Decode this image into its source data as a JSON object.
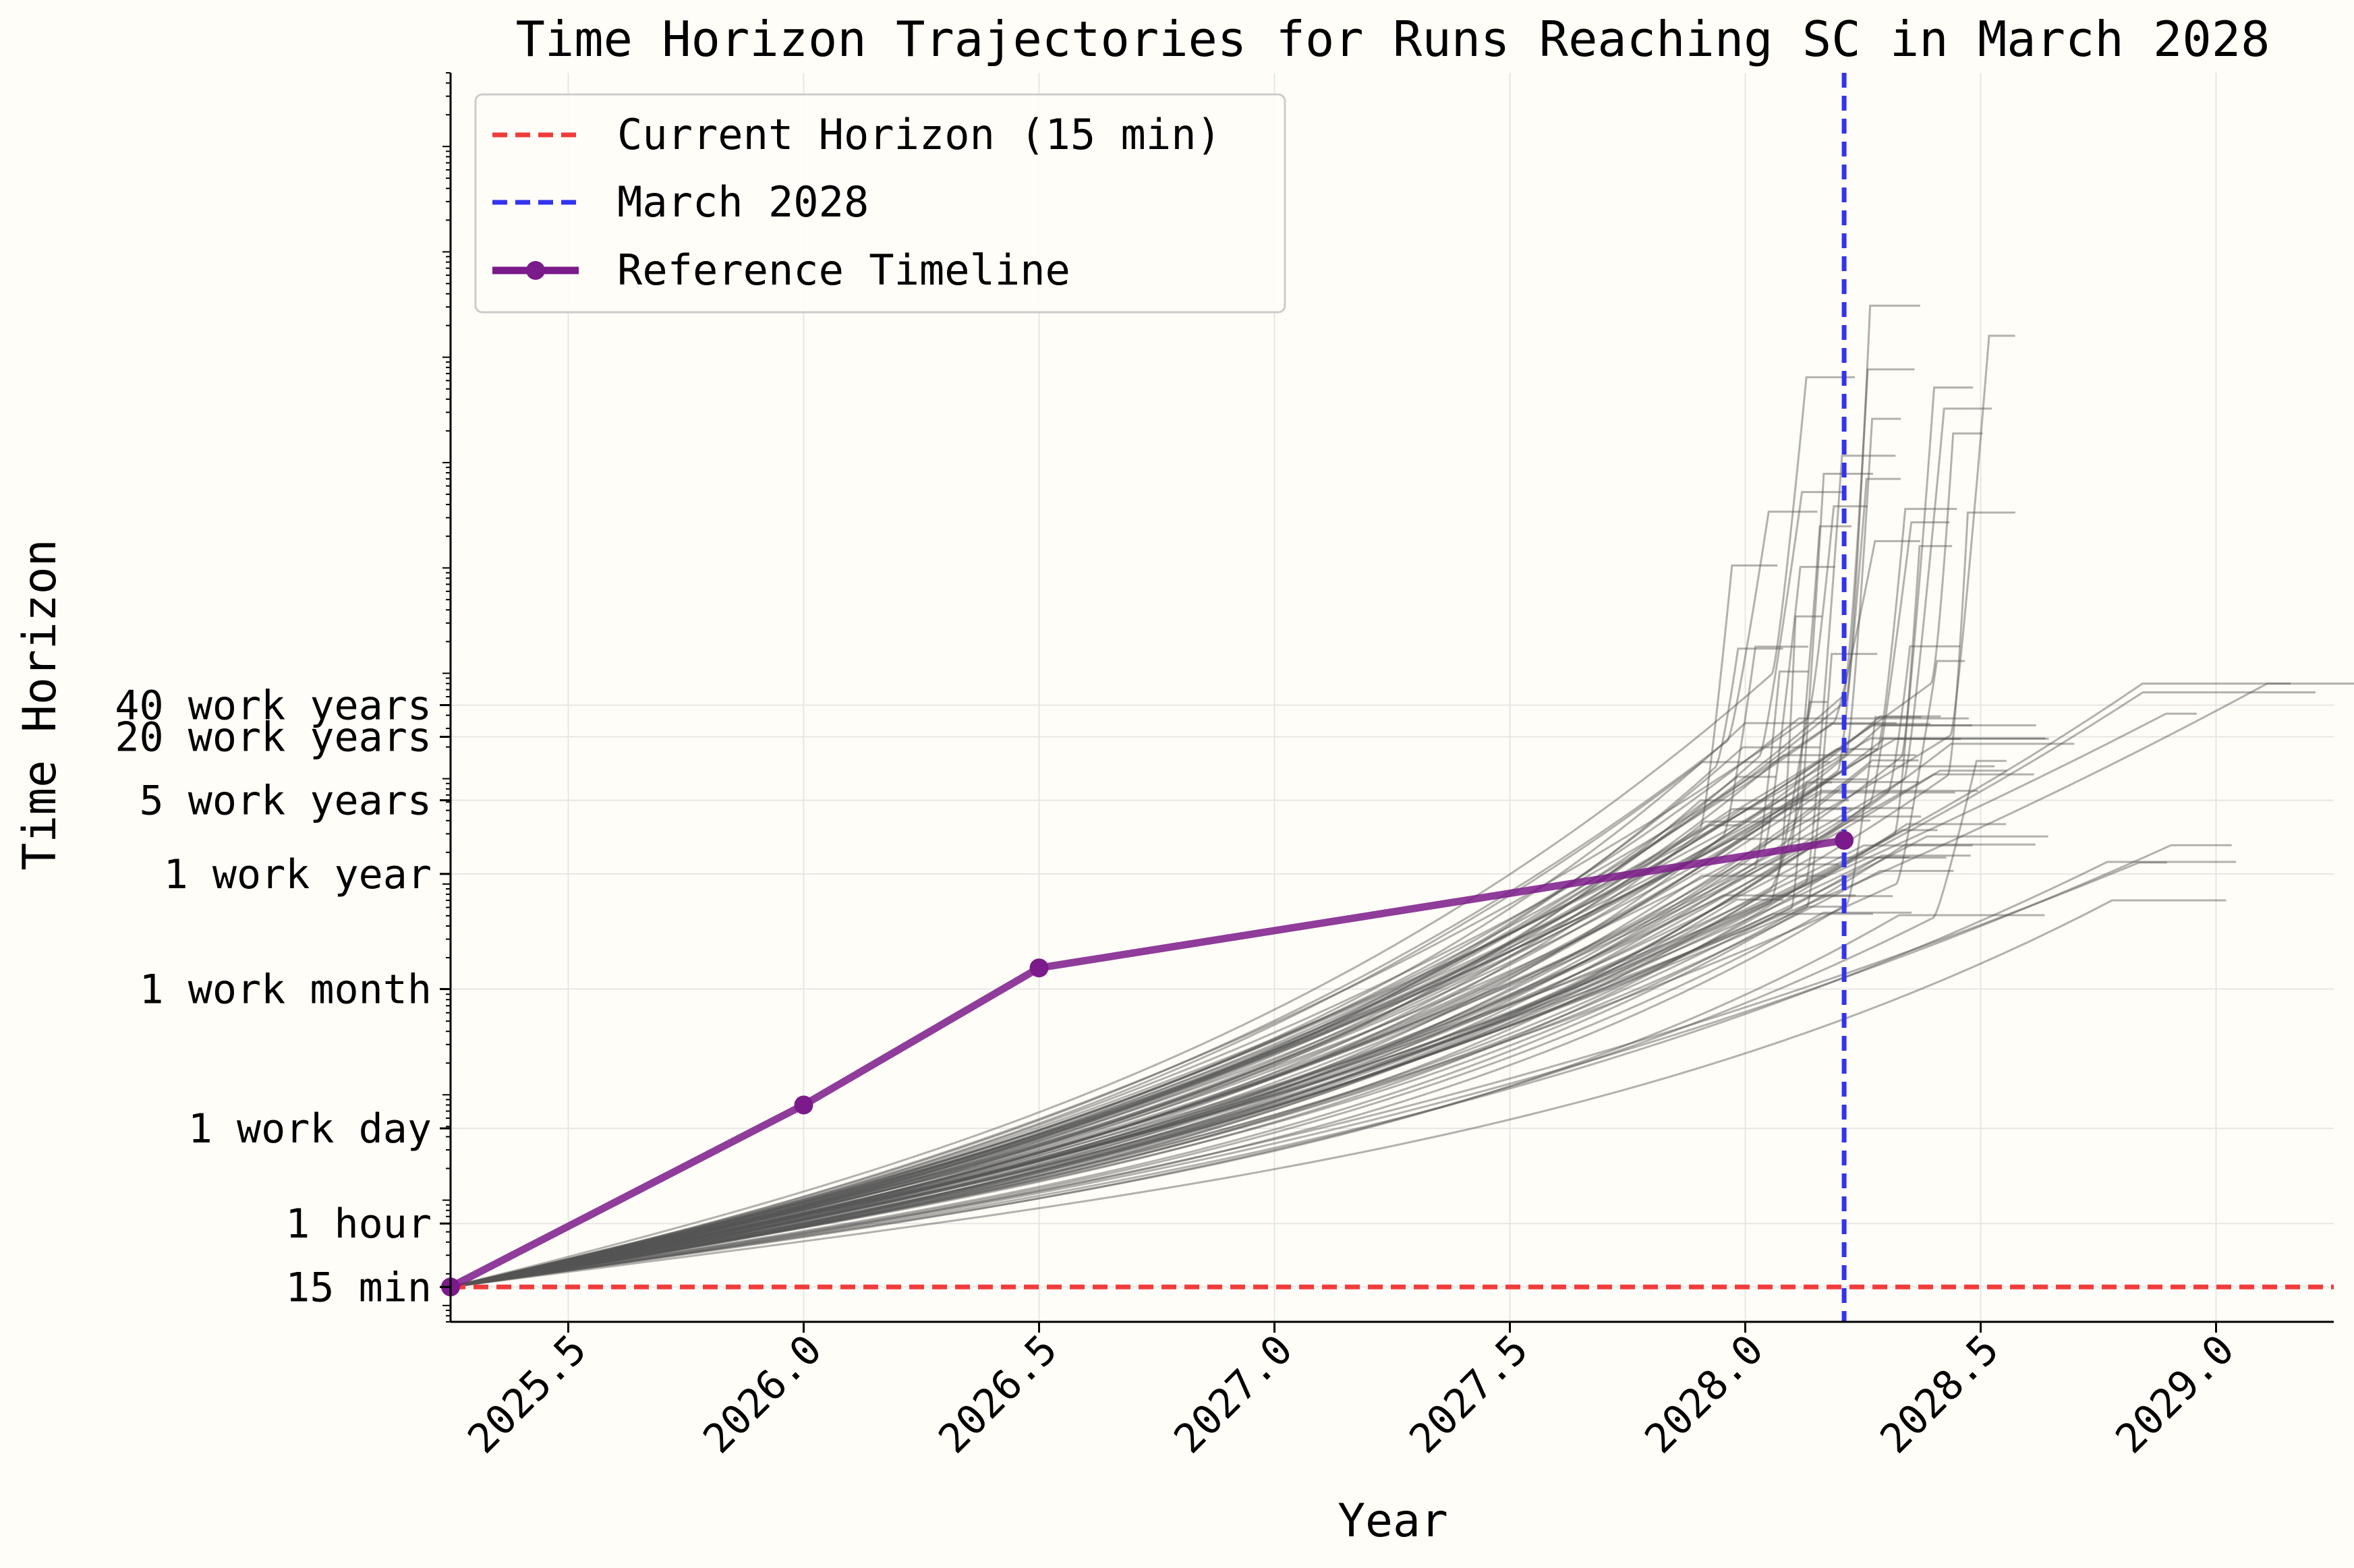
{
  "chart_data": {
    "type": "line",
    "title": "Time Horizon Trajectories for Runs Reaching SC in March 2028",
    "xlabel": "Year",
    "ylabel": "Time Horizon",
    "xlim": [
      2025.25,
      2029.25
    ],
    "x_ticks": [
      2025.5,
      2026.0,
      2026.5,
      2027.0,
      2027.5,
      2028.0,
      2028.5,
      2029.0
    ],
    "x_tick_labels": [
      "2025.5",
      "2026.0",
      "2026.5",
      "2027.0",
      "2027.5",
      "2028.0",
      "2028.5",
      "2029.0"
    ],
    "y_scale": "log",
    "y_unit": "minutes",
    "ylim_minutes": [
      7,
      5000000000000
    ],
    "y_ticks": [
      {
        "label": "15 min",
        "minutes": 15
      },
      {
        "label": "1 hour",
        "minutes": 60
      },
      {
        "label": "1 work day",
        "minutes": 480
      },
      {
        "label": "1 work month",
        "minutes": 10080
      },
      {
        "label": "1 work year",
        "minutes": 124800
      },
      {
        "label": "5 work years",
        "minutes": 624000
      },
      {
        "label": "20 work years",
        "minutes": 2496000
      },
      {
        "label": "40 work years",
        "minutes": 4992000
      }
    ],
    "grid": true,
    "legend_position": "top-left",
    "legend": [
      {
        "label": "Current Horizon (15 min)",
        "style": "dashed",
        "color": "#f03c3c"
      },
      {
        "label": "March 2028",
        "style": "dashed",
        "color": "#3333ee"
      },
      {
        "label": "Reference Timeline",
        "style": "line-marker",
        "color": "#7b1a8a"
      }
    ],
    "current_horizon_minutes": 15,
    "march_2028_x": 2028.21,
    "reference_timeline": {
      "name": "Reference Timeline",
      "color": "#7b1a8a",
      "x": [
        2025.25,
        2026.0,
        2026.5,
        2028.21
      ],
      "y_minutes": [
        15,
        800,
        16000,
        260000
      ]
    },
    "trajectories_note": "",
    "colors": {
      "background": "#fffdf7",
      "grid": "#e6e6e6",
      "trajectory": "#555555",
      "current_horizon": "#f03c3c",
      "march_2028": "#3333ee",
      "reference": "#7b1a8a"
    }
  }
}
